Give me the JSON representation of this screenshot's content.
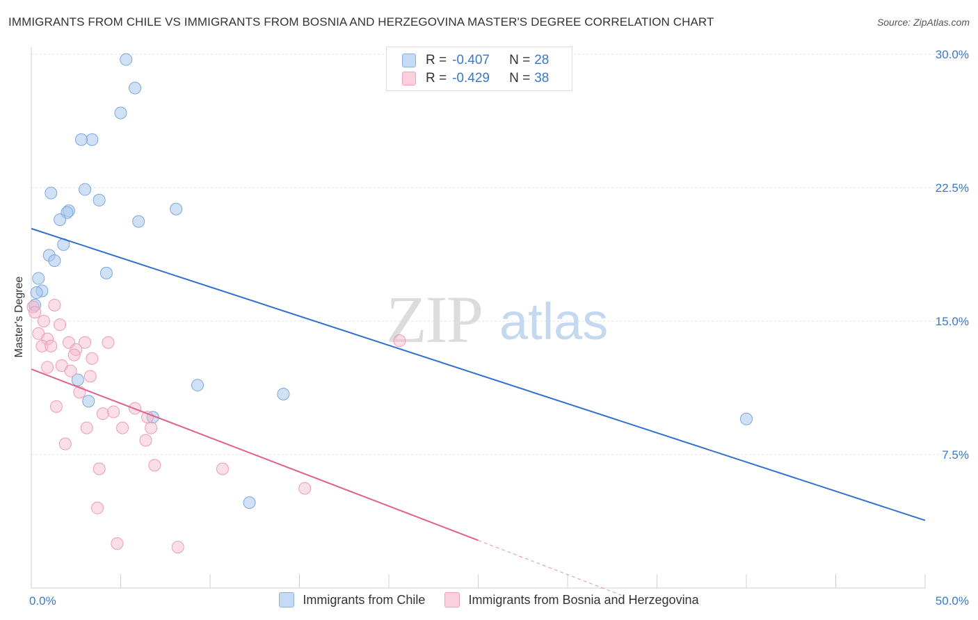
{
  "title": "IMMIGRANTS FROM CHILE VS IMMIGRANTS FROM BOSNIA AND HERZEGOVINA MASTER'S DEGREE CORRELATION CHART",
  "source": "Source: ZipAtlas.com",
  "watermark": {
    "zip": "ZIP",
    "atlas": "atlas"
  },
  "legend": {
    "r_label": "R =",
    "n_label": "N =",
    "rows": [
      {
        "r": "-0.407",
        "n": "28"
      },
      {
        "r": "-0.429",
        "n": "38"
      }
    ]
  },
  "chart_data": {
    "type": "scatter",
    "title": "IMMIGRANTS FROM CHILE VS IMMIGRANTS FROM BOSNIA AND HERZEGOVINA MASTER'S DEGREE CORRELATION CHART",
    "xlabel": "",
    "ylabel": "Master's Degree",
    "xlim": [
      0,
      50
    ],
    "ylim": [
      0,
      30
    ],
    "x_tick_labels": [
      "0.0%",
      "50.0%"
    ],
    "y_ticks": [
      7.5,
      15.0,
      22.5,
      30.0
    ],
    "y_tick_labels": [
      "7.5%",
      "15.0%",
      "22.5%",
      "30.0%"
    ],
    "grid": true,
    "series": [
      {
        "name": "Immigrants from Chile",
        "color": "#a9c8ee",
        "line_color": "#2f6fcf",
        "trend": {
          "x": [
            0,
            50
          ],
          "y": [
            20.2,
            3.8
          ],
          "dashed_from": null
        },
        "points": [
          [
            5.3,
            29.7
          ],
          [
            5.8,
            28.1
          ],
          [
            5.0,
            26.7
          ],
          [
            3.4,
            25.2
          ],
          [
            2.8,
            25.2
          ],
          [
            3.0,
            22.4
          ],
          [
            1.1,
            22.2
          ],
          [
            3.8,
            21.8
          ],
          [
            8.1,
            21.3
          ],
          [
            2.1,
            21.2
          ],
          [
            2.0,
            21.1
          ],
          [
            1.6,
            20.7
          ],
          [
            6.0,
            20.6
          ],
          [
            1.8,
            19.3
          ],
          [
            1.0,
            18.7
          ],
          [
            1.3,
            18.4
          ],
          [
            4.2,
            17.7
          ],
          [
            0.4,
            17.4
          ],
          [
            0.6,
            16.7
          ],
          [
            0.3,
            16.6
          ],
          [
            0.2,
            15.9
          ],
          [
            2.6,
            11.7
          ],
          [
            9.3,
            11.4
          ],
          [
            3.2,
            10.5
          ],
          [
            14.1,
            10.9
          ],
          [
            6.8,
            9.6
          ],
          [
            40.0,
            9.5
          ],
          [
            12.2,
            4.8
          ]
        ]
      },
      {
        "name": "Immigrants from Bosnia and Herzegovina",
        "color": "#f5b8cc",
        "line_color": "#e0608d",
        "trend": {
          "x": [
            0,
            33
          ],
          "y": [
            12.3,
            -0.4
          ],
          "dashed_from": 25
        },
        "points": [
          [
            0.1,
            15.8
          ],
          [
            0.2,
            15.5
          ],
          [
            1.3,
            15.9
          ],
          [
            0.7,
            15.0
          ],
          [
            1.6,
            14.8
          ],
          [
            0.4,
            14.3
          ],
          [
            0.9,
            14.0
          ],
          [
            2.1,
            13.8
          ],
          [
            3.0,
            13.8
          ],
          [
            4.3,
            13.8
          ],
          [
            0.6,
            13.6
          ],
          [
            1.1,
            13.6
          ],
          [
            2.5,
            13.4
          ],
          [
            2.4,
            13.1
          ],
          [
            3.4,
            12.9
          ],
          [
            1.7,
            12.5
          ],
          [
            0.9,
            12.4
          ],
          [
            2.2,
            12.2
          ],
          [
            3.3,
            11.9
          ],
          [
            2.7,
            11.0
          ],
          [
            1.4,
            10.2
          ],
          [
            5.8,
            10.1
          ],
          [
            4.0,
            9.8
          ],
          [
            4.6,
            9.9
          ],
          [
            6.5,
            9.6
          ],
          [
            6.7,
            9.0
          ],
          [
            3.1,
            9.0
          ],
          [
            5.1,
            9.0
          ],
          [
            6.4,
            8.3
          ],
          [
            1.9,
            8.1
          ],
          [
            6.9,
            6.9
          ],
          [
            3.8,
            6.7
          ],
          [
            10.7,
            6.7
          ],
          [
            15.3,
            5.6
          ],
          [
            3.7,
            4.5
          ],
          [
            4.8,
            2.5
          ],
          [
            8.2,
            2.3
          ],
          [
            20.6,
            13.9
          ]
        ]
      }
    ]
  }
}
